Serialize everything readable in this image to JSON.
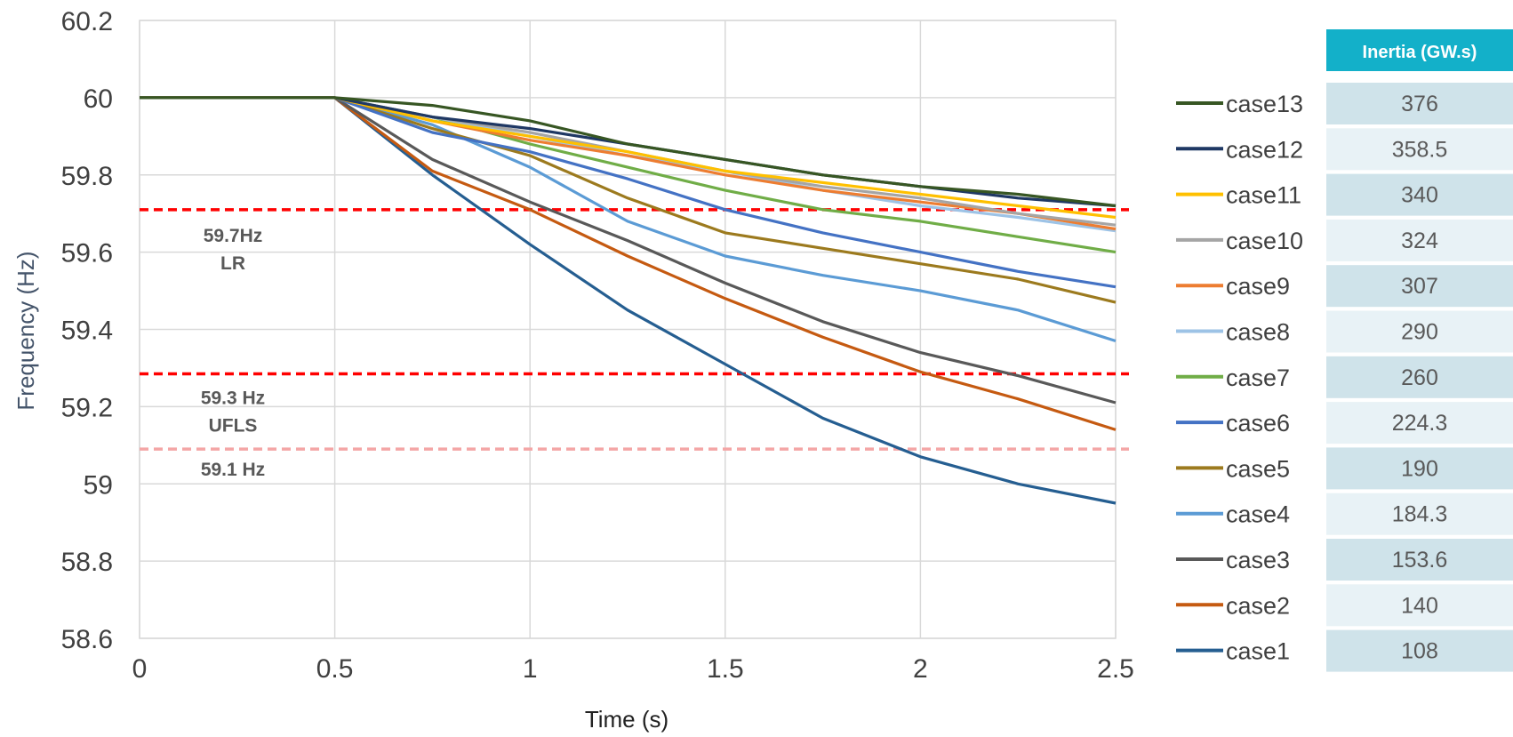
{
  "chart_data": {
    "type": "line",
    "title": "",
    "xlabel": "Time (s)",
    "ylabel": "Frequency (Hz)",
    "xlim": [
      0,
      2.5
    ],
    "ylim": [
      58.6,
      60.2
    ],
    "x_ticks": [
      "0",
      "0.5",
      "1",
      "1.5",
      "2",
      "2.5"
    ],
    "y_ticks": [
      "58.6",
      "58.8",
      "59",
      "59.2",
      "59.4",
      "59.6",
      "59.8",
      "60",
      "60.2"
    ],
    "grid": true,
    "legend_position": "right",
    "thresholds": [
      {
        "value": 59.71,
        "style": "dashed",
        "color": "#ff0000",
        "label_lines": [
          "59.7Hz",
          "LR"
        ]
      },
      {
        "value": 59.285,
        "style": "dashed",
        "color": "#ff0000",
        "label_lines": [
          "59.3 Hz",
          "UFLS"
        ]
      },
      {
        "value": 59.09,
        "style": "dashed",
        "color": "#f4a6a6",
        "label_lines": [
          "59.1 Hz"
        ]
      }
    ],
    "x": [
      0,
      0.5,
      0.75,
      1.0,
      1.25,
      1.5,
      1.75,
      2.0,
      2.25,
      2.5
    ],
    "series": [
      {
        "name": "case13",
        "color": "#375623",
        "values": [
          60,
          60,
          59.98,
          59.94,
          59.88,
          59.84,
          59.8,
          59.77,
          59.75,
          59.72
        ]
      },
      {
        "name": "case12",
        "color": "#1f3864",
        "values": [
          60,
          60,
          59.95,
          59.92,
          59.88,
          59.84,
          59.8,
          59.77,
          59.74,
          59.72
        ]
      },
      {
        "name": "case11",
        "color": "#ffc000",
        "values": [
          60,
          60,
          59.94,
          59.9,
          59.86,
          59.81,
          59.78,
          59.75,
          59.72,
          59.69
        ]
      },
      {
        "name": "case10",
        "color": "#a5a5a5",
        "values": [
          60,
          60,
          59.95,
          59.91,
          59.86,
          59.81,
          59.77,
          59.74,
          59.7,
          59.67
        ]
      },
      {
        "name": "case9",
        "color": "#ed7d31",
        "values": [
          60,
          60,
          59.94,
          59.89,
          59.85,
          59.8,
          59.76,
          59.73,
          59.7,
          59.66
        ]
      },
      {
        "name": "case8",
        "color": "#9dc3e6",
        "values": [
          60,
          60,
          59.95,
          59.9,
          59.85,
          59.81,
          59.76,
          59.72,
          59.69,
          59.655
        ]
      },
      {
        "name": "case7",
        "color": "#70ad47",
        "values": [
          60,
          60,
          59.95,
          59.88,
          59.82,
          59.76,
          59.71,
          59.68,
          59.64,
          59.6
        ]
      },
      {
        "name": "case6",
        "color": "#4472c4",
        "values": [
          60,
          60,
          59.91,
          59.86,
          59.79,
          59.71,
          59.65,
          59.6,
          59.55,
          59.51
        ]
      },
      {
        "name": "case5",
        "color": "#9c7a1e",
        "values": [
          60,
          60,
          59.92,
          59.85,
          59.74,
          59.65,
          59.61,
          59.57,
          59.53,
          59.47
        ]
      },
      {
        "name": "case4",
        "color": "#5b9bd5",
        "values": [
          60,
          60,
          59.93,
          59.82,
          59.68,
          59.59,
          59.54,
          59.5,
          59.45,
          59.37
        ]
      },
      {
        "name": "case3",
        "color": "#595959",
        "values": [
          60,
          60,
          59.84,
          59.73,
          59.63,
          59.52,
          59.42,
          59.34,
          59.28,
          59.21
        ]
      },
      {
        "name": "case2",
        "color": "#c55a11",
        "values": [
          60,
          60,
          59.81,
          59.71,
          59.59,
          59.48,
          59.38,
          59.29,
          59.22,
          59.14
        ]
      },
      {
        "name": "case1",
        "color": "#255e91",
        "values": [
          60,
          60,
          59.8,
          59.62,
          59.45,
          59.31,
          59.17,
          59.07,
          59.0,
          58.95
        ]
      }
    ]
  },
  "inertia_table": {
    "header": "Inertia (GW.s)",
    "header_color": "#13b0c9",
    "rows": [
      {
        "case": "case13",
        "value": "376"
      },
      {
        "case": "case12",
        "value": "358.5"
      },
      {
        "case": "case11",
        "value": "340"
      },
      {
        "case": "case10",
        "value": "324"
      },
      {
        "case": "case9",
        "value": "307"
      },
      {
        "case": "case8",
        "value": "290"
      },
      {
        "case": "case7",
        "value": "260"
      },
      {
        "case": "case6",
        "value": "224.3"
      },
      {
        "case": "case5",
        "value": "190"
      },
      {
        "case": "case4",
        "value": "184.3"
      },
      {
        "case": "case3",
        "value": "153.6"
      },
      {
        "case": "case2",
        "value": "140"
      },
      {
        "case": "case1",
        "value": "108"
      }
    ]
  }
}
